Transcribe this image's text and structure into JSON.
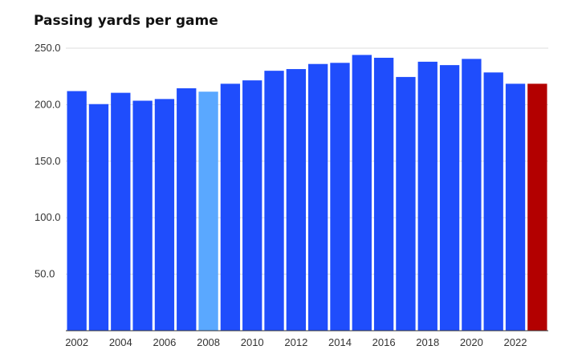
{
  "chart_data": {
    "type": "bar",
    "title": "Passing yards per game",
    "xlabel": "",
    "ylabel": "",
    "categories": [
      "2002",
      "2003",
      "2004",
      "2005",
      "2006",
      "2007",
      "2008",
      "2009",
      "2010",
      "2011",
      "2012",
      "2013",
      "2014",
      "2015",
      "2016",
      "2017",
      "2018",
      "2019",
      "2020",
      "2021",
      "2022",
      "2023"
    ],
    "values": [
      212.0,
      200.5,
      210.5,
      203.5,
      205.0,
      214.5,
      211.5,
      218.5,
      221.5,
      230.0,
      231.5,
      236.0,
      237.0,
      244.0,
      241.5,
      224.5,
      238.0,
      235.0,
      240.5,
      228.5,
      218.5,
      218.5
    ],
    "bar_colors": [
      "#1f4dfc",
      "#1f4dfc",
      "#1f4dfc",
      "#1f4dfc",
      "#1f4dfc",
      "#1f4dfc",
      "#5aa8ff",
      "#1f4dfc",
      "#1f4dfc",
      "#1f4dfc",
      "#1f4dfc",
      "#1f4dfc",
      "#1f4dfc",
      "#1f4dfc",
      "#1f4dfc",
      "#1f4dfc",
      "#1f4dfc",
      "#1f4dfc",
      "#1f4dfc",
      "#1f4dfc",
      "#1f4dfc",
      "#b30000"
    ],
    "ylim": [
      0,
      250
    ],
    "yticks": [
      50,
      100,
      150,
      200,
      250
    ],
    "ytick_labels": [
      "50.0",
      "100.0",
      "150.0",
      "200.0",
      "250.0"
    ],
    "xtick_labels": [
      "2002",
      "2004",
      "2006",
      "2008",
      "2010",
      "2012",
      "2014",
      "2016",
      "2018",
      "2020",
      "2022"
    ],
    "grid": true,
    "legend": "none"
  }
}
